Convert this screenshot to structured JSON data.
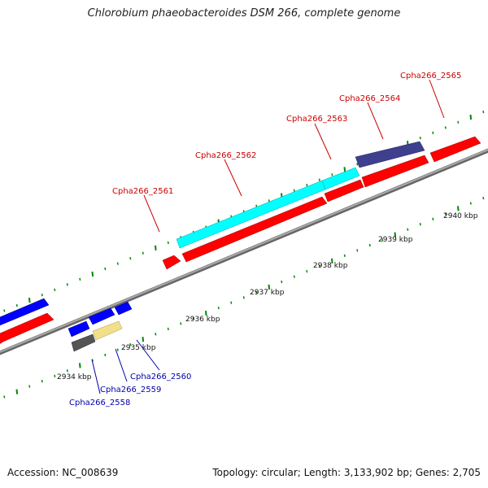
{
  "title": "Chlorobium phaeobacteroides DSM 266, complete genome",
  "footer": {
    "accession": "Accession: NC_008639",
    "stats": "Topology: circular; Length: 3,133,902 bp; Genes: 2,705"
  },
  "scale_labels": [
    "2934 kbp",
    "2935 kbp",
    "2936 kbp",
    "2937 kbp",
    "2938 kbp",
    "2939 kbp",
    "2940 kbp"
  ],
  "forward_labels": [
    "Cpha266_2561",
    "Cpha266_2562",
    "Cpha266_2563",
    "Cpha266_2564",
    "Cpha266_2565"
  ],
  "reverse_labels": [
    "Cpha266_2558",
    "Cpha266_2559",
    "Cpha266_2560"
  ],
  "colors": {
    "cds": "#ff0000",
    "gene": "#0000ff",
    "highlight_cyan": "#00ffff",
    "highlight_navy": "#3f3f8f",
    "highlight_yellow": "#f0e08a",
    "highlight_gray": "#666666",
    "backbone": "#888888",
    "ticks": "#008800"
  }
}
